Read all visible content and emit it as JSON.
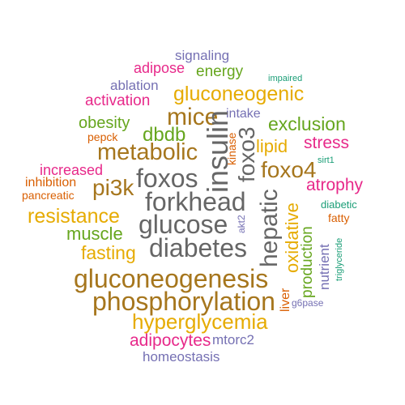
{
  "word_cloud": {
    "words": [
      {
        "id": "w-signaling",
        "text": "signaling",
        "color": "#7570b3"
      },
      {
        "id": "w-adipose",
        "text": "adipose",
        "color": "#e7298a"
      },
      {
        "id": "w-energy",
        "text": "energy",
        "color": "#66a61e"
      },
      {
        "id": "w-impaired",
        "text": "impaired",
        "color": "#1b9e77"
      },
      {
        "id": "w-ablation",
        "text": "ablation",
        "color": "#7570b3"
      },
      {
        "id": "w-activation",
        "text": "activation",
        "color": "#e7298a"
      },
      {
        "id": "w-gluconeogenic",
        "text": "gluconeogenic",
        "color": "#e6ab02"
      },
      {
        "id": "w-mice",
        "text": "mice",
        "color": "#a6761d"
      },
      {
        "id": "w-intake",
        "text": "intake",
        "color": "#7570b3"
      },
      {
        "id": "w-obesity",
        "text": "obesity",
        "color": "#66a61e"
      },
      {
        "id": "w-exclusion",
        "text": "exclusion",
        "color": "#66a61e"
      },
      {
        "id": "w-dbdb",
        "text": "dbdb",
        "color": "#66a61e"
      },
      {
        "id": "w-pepck",
        "text": "pepck",
        "color": "#d95f02"
      },
      {
        "id": "w-stress",
        "text": "stress",
        "color": "#e7298a"
      },
      {
        "id": "w-lipid",
        "text": "lipid",
        "color": "#e6ab02"
      },
      {
        "id": "w-metabolic",
        "text": "metabolic",
        "color": "#a6761d"
      },
      {
        "id": "w-sirt1",
        "text": "sirt1",
        "color": "#1b9e77"
      },
      {
        "id": "w-increased",
        "text": "increased",
        "color": "#e7298a"
      },
      {
        "id": "w-foxos",
        "text": "foxos",
        "color": "#666666"
      },
      {
        "id": "w-foxo4",
        "text": "foxo4",
        "color": "#a6761d"
      },
      {
        "id": "w-inhibition",
        "text": "inhibition",
        "color": "#d95f02"
      },
      {
        "id": "w-pi3k",
        "text": "pi3k",
        "color": "#a6761d"
      },
      {
        "id": "w-atrophy",
        "text": "atrophy",
        "color": "#e7298a"
      },
      {
        "id": "w-pancreatic",
        "text": "pancreatic",
        "color": "#d95f02"
      },
      {
        "id": "w-forkhead",
        "text": "forkhead",
        "color": "#666666"
      },
      {
        "id": "w-diabetic",
        "text": "diabetic",
        "color": "#1b9e77"
      },
      {
        "id": "w-resistance",
        "text": "resistance",
        "color": "#e6ab02"
      },
      {
        "id": "w-glucose",
        "text": "glucose",
        "color": "#666666"
      },
      {
        "id": "w-fatty",
        "text": "fatty",
        "color": "#d95f02"
      },
      {
        "id": "w-muscle",
        "text": "muscle",
        "color": "#66a61e"
      },
      {
        "id": "w-diabetes",
        "text": "diabetes",
        "color": "#666666"
      },
      {
        "id": "w-fasting",
        "text": "fasting",
        "color": "#e6ab02"
      },
      {
        "id": "w-gluconeogenesis",
        "text": "gluconeogenesis",
        "color": "#a6761d"
      },
      {
        "id": "w-phosphorylation",
        "text": "phosphorylation",
        "color": "#a6761d"
      },
      {
        "id": "w-g6pase",
        "text": "g6pase",
        "color": "#7570b3"
      },
      {
        "id": "w-hyperglycemia",
        "text": "hyperglycemia",
        "color": "#e6ab02"
      },
      {
        "id": "w-adipocytes",
        "text": "adipocytes",
        "color": "#e7298a"
      },
      {
        "id": "w-mtorc2",
        "text": "mtorc2",
        "color": "#7570b3"
      },
      {
        "id": "w-homeostasis",
        "text": "homeostasis",
        "color": "#7570b3"
      },
      {
        "id": "w-insulin",
        "text": "insulin",
        "color": "#666666"
      },
      {
        "id": "w-kinase",
        "text": "kinase",
        "color": "#d95f02"
      },
      {
        "id": "w-foxo3",
        "text": "foxo3",
        "color": "#666666"
      },
      {
        "id": "w-hepatic",
        "text": "hepatic",
        "color": "#666666"
      },
      {
        "id": "w-akt2",
        "text": "akt2",
        "color": "#7570b3"
      },
      {
        "id": "w-oxidative",
        "text": "oxidative",
        "color": "#e6ab02"
      },
      {
        "id": "w-production",
        "text": "production",
        "color": "#66a61e"
      },
      {
        "id": "w-nutrient",
        "text": "nutrient",
        "color": "#7570b3"
      },
      {
        "id": "w-triglyceride",
        "text": "triglyceride",
        "color": "#1b9e77"
      },
      {
        "id": "w-liver",
        "text": "liver",
        "color": "#d95f02"
      }
    ]
  }
}
